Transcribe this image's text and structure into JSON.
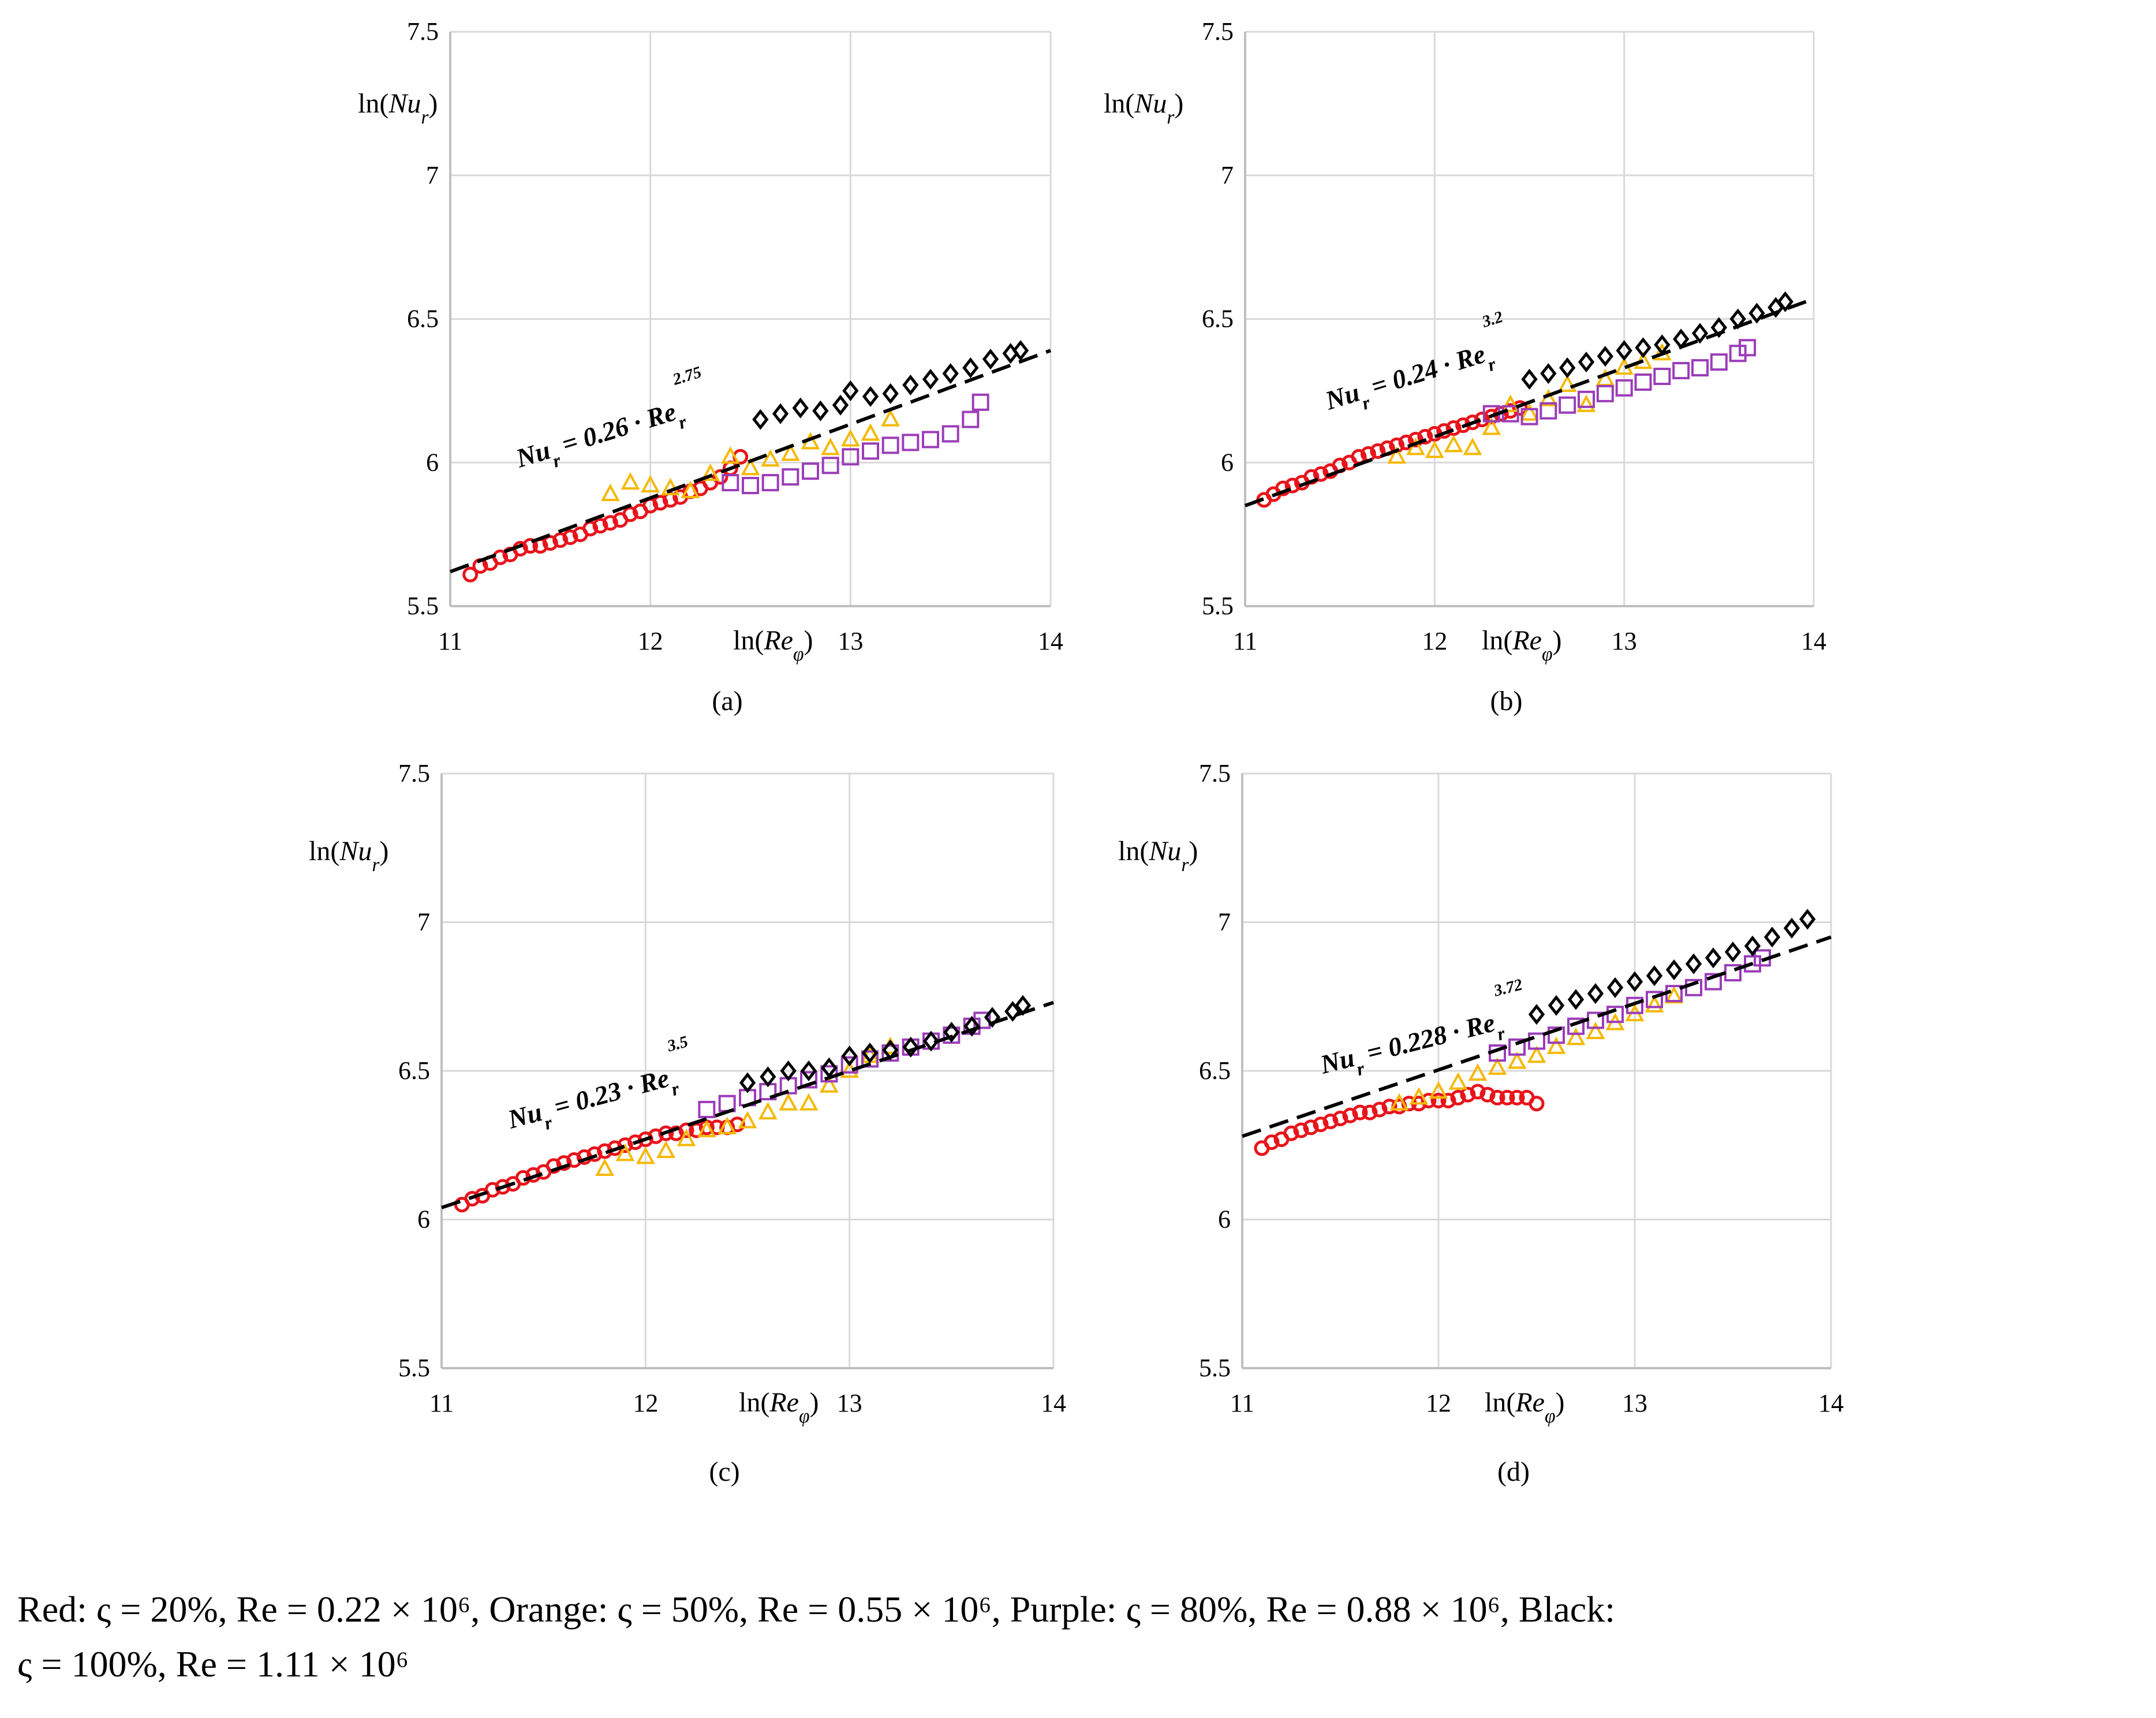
{
  "colors": {
    "red": "#e8141b",
    "orange": "#f5b800",
    "purple": "#9b3db8",
    "black": "#000000",
    "grid": "#d9d9d9",
    "axis": "#bfbfbf"
  },
  "chart_data": [
    {
      "type": "scatter",
      "panel_label": "(a)",
      "xlabel": "ln(Re_φ)",
      "ylabel": "ln(Nu_r)",
      "xlim": [
        11,
        14
      ],
      "ylim": [
        5.5,
        7.5
      ],
      "xticks": [
        "11",
        "12",
        "13",
        "14"
      ],
      "yticks": [
        "5.5",
        "6",
        "6.5",
        "7",
        "7.5"
      ],
      "grid": true,
      "fit_line": {
        "label": "Nu_r = 0.26 · Re_r",
        "exponent": "2.75",
        "x": [
          11,
          14
        ],
        "y": [
          5.62,
          6.39
        ]
      },
      "series": [
        {
          "color": "red",
          "marker": "circle",
          "x": [
            11.1,
            11.15,
            11.2,
            11.25,
            11.3,
            11.35,
            11.4,
            11.45,
            11.5,
            11.55,
            11.6,
            11.65,
            11.7,
            11.75,
            11.8,
            11.85,
            11.9,
            11.95,
            12.0,
            12.05,
            12.1,
            12.15,
            12.2,
            12.25,
            12.3,
            12.35,
            12.4,
            12.45
          ],
          "y": [
            5.61,
            5.64,
            5.65,
            5.67,
            5.68,
            5.7,
            5.71,
            5.71,
            5.72,
            5.73,
            5.74,
            5.75,
            5.77,
            5.78,
            5.79,
            5.8,
            5.82,
            5.83,
            5.85,
            5.86,
            5.87,
            5.88,
            5.9,
            5.91,
            5.93,
            5.95,
            5.98,
            6.02
          ]
        },
        {
          "color": "orange",
          "marker": "triangle",
          "x": [
            11.8,
            11.9,
            12.0,
            12.1,
            12.2,
            12.3,
            12.4,
            12.5,
            12.6,
            12.7,
            12.8,
            12.9,
            13.0,
            13.1,
            13.2
          ],
          "y": [
            5.89,
            5.93,
            5.92,
            5.91,
            5.9,
            5.96,
            6.02,
            5.98,
            6.01,
            6.03,
            6.07,
            6.05,
            6.08,
            6.1,
            6.15
          ]
        },
        {
          "color": "purple",
          "marker": "square",
          "x": [
            12.4,
            12.5,
            12.6,
            12.7,
            12.8,
            12.9,
            13.0,
            13.1,
            13.2,
            13.3,
            13.4,
            13.5,
            13.6,
            13.65
          ],
          "y": [
            5.93,
            5.92,
            5.93,
            5.95,
            5.97,
            5.99,
            6.02,
            6.04,
            6.06,
            6.07,
            6.08,
            6.1,
            6.15,
            6.21
          ]
        },
        {
          "color": "black",
          "marker": "diamond",
          "x": [
            12.55,
            12.65,
            12.75,
            12.85,
            12.95,
            13.0,
            13.1,
            13.2,
            13.3,
            13.4,
            13.5,
            13.6,
            13.7,
            13.8,
            13.85
          ],
          "y": [
            6.15,
            6.17,
            6.19,
            6.18,
            6.2,
            6.25,
            6.23,
            6.24,
            6.27,
            6.29,
            6.31,
            6.33,
            6.36,
            6.38,
            6.39
          ]
        }
      ]
    },
    {
      "type": "scatter",
      "panel_label": "(b)",
      "xlabel": "ln(Re_φ)",
      "ylabel": "ln(Nu_r)",
      "xlim": [
        11,
        14
      ],
      "ylim": [
        5.5,
        7.5
      ],
      "xticks": [
        "11",
        "12",
        "13",
        "14"
      ],
      "yticks": [
        "5.5",
        "6",
        "6.5",
        "7",
        "7.5"
      ],
      "grid": true,
      "fit_line": {
        "label": "Nu_r = 0.24 · Re_r",
        "exponent": "3.2",
        "x": [
          11,
          14
        ],
        "y": [
          5.85,
          6.57
        ]
      },
      "series": [
        {
          "color": "red",
          "marker": "circle",
          "x": [
            11.1,
            11.15,
            11.2,
            11.25,
            11.3,
            11.35,
            11.4,
            11.45,
            11.5,
            11.55,
            11.6,
            11.65,
            11.7,
            11.75,
            11.8,
            11.85,
            11.9,
            11.95,
            12.0,
            12.05,
            12.1,
            12.15,
            12.2,
            12.25,
            12.3,
            12.35,
            12.4,
            12.45
          ],
          "y": [
            5.87,
            5.89,
            5.91,
            5.92,
            5.93,
            5.95,
            5.96,
            5.97,
            5.99,
            6.0,
            6.02,
            6.03,
            6.04,
            6.05,
            6.06,
            6.07,
            6.08,
            6.09,
            6.1,
            6.11,
            6.12,
            6.13,
            6.14,
            6.15,
            6.16,
            6.17,
            6.18,
            6.19
          ]
        },
        {
          "color": "orange",
          "marker": "triangle",
          "x": [
            11.8,
            11.9,
            12.0,
            12.1,
            12.2,
            12.3,
            12.4,
            12.5,
            12.6,
            12.7,
            12.8,
            12.9,
            13.0,
            13.1,
            13.2
          ],
          "y": [
            6.02,
            6.05,
            6.04,
            6.06,
            6.05,
            6.12,
            6.2,
            6.17,
            6.22,
            6.27,
            6.2,
            6.29,
            6.33,
            6.35,
            6.38
          ]
        },
        {
          "color": "purple",
          "marker": "square",
          "x": [
            12.3,
            12.4,
            12.5,
            12.6,
            12.7,
            12.8,
            12.9,
            13.0,
            13.1,
            13.2,
            13.3,
            13.4,
            13.5,
            13.6,
            13.65
          ],
          "y": [
            6.17,
            6.17,
            6.16,
            6.18,
            6.2,
            6.22,
            6.24,
            6.26,
            6.28,
            6.3,
            6.32,
            6.33,
            6.35,
            6.38,
            6.4
          ]
        },
        {
          "color": "black",
          "marker": "diamond",
          "x": [
            12.5,
            12.6,
            12.7,
            12.8,
            12.9,
            13.0,
            13.1,
            13.2,
            13.3,
            13.4,
            13.5,
            13.6,
            13.7,
            13.8,
            13.85
          ],
          "y": [
            6.29,
            6.31,
            6.33,
            6.35,
            6.37,
            6.39,
            6.4,
            6.41,
            6.43,
            6.45,
            6.47,
            6.5,
            6.52,
            6.54,
            6.56
          ]
        }
      ]
    },
    {
      "type": "scatter",
      "panel_label": "(c)",
      "xlabel": "ln(Re_φ)",
      "ylabel": "ln(Nu_r)",
      "xlim": [
        11,
        14
      ],
      "ylim": [
        5.5,
        7.5
      ],
      "xticks": [
        "11",
        "12",
        "13",
        "14"
      ],
      "yticks": [
        "5.5",
        "6",
        "6.5",
        "7",
        "7.5"
      ],
      "grid": true,
      "fit_line": {
        "label": "Nu_r = 0.23 · Re_r",
        "exponent": "3.5",
        "x": [
          11,
          14
        ],
        "y": [
          6.04,
          6.73
        ]
      },
      "series": [
        {
          "color": "red",
          "marker": "circle",
          "x": [
            11.1,
            11.15,
            11.2,
            11.25,
            11.3,
            11.35,
            11.4,
            11.45,
            11.5,
            11.55,
            11.6,
            11.65,
            11.7,
            11.75,
            11.8,
            11.85,
            11.9,
            11.95,
            12.0,
            12.05,
            12.1,
            12.15,
            12.2,
            12.25,
            12.3,
            12.35,
            12.4,
            12.45
          ],
          "y": [
            6.05,
            6.07,
            6.08,
            6.1,
            6.11,
            6.12,
            6.14,
            6.15,
            6.16,
            6.18,
            6.19,
            6.2,
            6.21,
            6.22,
            6.23,
            6.24,
            6.25,
            6.26,
            6.27,
            6.28,
            6.29,
            6.29,
            6.3,
            6.3,
            6.31,
            6.31,
            6.31,
            6.32
          ]
        },
        {
          "color": "orange",
          "marker": "triangle",
          "x": [
            11.8,
            11.9,
            12.0,
            12.1,
            12.2,
            12.3,
            12.4,
            12.5,
            12.6,
            12.7,
            12.8,
            12.9,
            13.0,
            13.1,
            13.2
          ],
          "y": [
            6.17,
            6.22,
            6.21,
            6.23,
            6.27,
            6.3,
            6.31,
            6.33,
            6.36,
            6.39,
            6.39,
            6.45,
            6.5,
            6.55,
            6.58
          ]
        },
        {
          "color": "purple",
          "marker": "square",
          "x": [
            12.3,
            12.4,
            12.5,
            12.6,
            12.7,
            12.8,
            12.9,
            13.0,
            13.1,
            13.2,
            13.3,
            13.4,
            13.5,
            13.6,
            13.65
          ],
          "y": [
            6.37,
            6.39,
            6.41,
            6.43,
            6.45,
            6.47,
            6.49,
            6.52,
            6.54,
            6.56,
            6.58,
            6.6,
            6.62,
            6.65,
            6.67
          ]
        },
        {
          "color": "black",
          "marker": "diamond",
          "x": [
            12.5,
            12.6,
            12.7,
            12.8,
            12.9,
            13.0,
            13.1,
            13.2,
            13.3,
            13.4,
            13.5,
            13.6,
            13.7,
            13.8,
            13.85
          ],
          "y": [
            6.46,
            6.48,
            6.5,
            6.5,
            6.51,
            6.55,
            6.56,
            6.57,
            6.58,
            6.6,
            6.63,
            6.65,
            6.68,
            6.7,
            6.72
          ]
        }
      ]
    },
    {
      "type": "scatter",
      "panel_label": "(d)",
      "xlabel": "ln(Re_φ)",
      "ylabel": "ln(Nu_r)",
      "xlim": [
        11,
        14
      ],
      "ylim": [
        5.5,
        7.5
      ],
      "xticks": [
        "11",
        "12",
        "13",
        "14"
      ],
      "yticks": [
        "5.5",
        "6",
        "6.5",
        "7",
        "7.5"
      ],
      "grid": true,
      "fit_line": {
        "label": "Nu_r = 0.228 · Re_r",
        "exponent": "3.72",
        "x": [
          11,
          14
        ],
        "y": [
          6.28,
          6.95
        ]
      },
      "series": [
        {
          "color": "red",
          "marker": "circle",
          "x": [
            11.1,
            11.15,
            11.2,
            11.25,
            11.3,
            11.35,
            11.4,
            11.45,
            11.5,
            11.55,
            11.6,
            11.65,
            11.7,
            11.75,
            11.8,
            11.85,
            11.9,
            11.95,
            12.0,
            12.05,
            12.1,
            12.15,
            12.2,
            12.25,
            12.3,
            12.35,
            12.4,
            12.45,
            12.5
          ],
          "y": [
            6.24,
            6.26,
            6.27,
            6.29,
            6.3,
            6.31,
            6.32,
            6.33,
            6.34,
            6.35,
            6.36,
            6.36,
            6.37,
            6.38,
            6.38,
            6.39,
            6.39,
            6.4,
            6.4,
            6.4,
            6.41,
            6.42,
            6.43,
            6.42,
            6.41,
            6.41,
            6.41,
            6.41,
            6.39
          ]
        },
        {
          "color": "orange",
          "marker": "triangle",
          "x": [
            11.8,
            11.9,
            12.0,
            12.1,
            12.2,
            12.3,
            12.4,
            12.5,
            12.6,
            12.7,
            12.8,
            12.9,
            13.0,
            13.1,
            13.2
          ],
          "y": [
            6.39,
            6.41,
            6.43,
            6.46,
            6.49,
            6.51,
            6.53,
            6.55,
            6.58,
            6.61,
            6.63,
            6.66,
            6.69,
            6.72,
            6.75
          ]
        },
        {
          "color": "purple",
          "marker": "square",
          "x": [
            12.3,
            12.4,
            12.5,
            12.6,
            12.7,
            12.8,
            12.9,
            13.0,
            13.1,
            13.2,
            13.3,
            13.4,
            13.5,
            13.6,
            13.65
          ],
          "y": [
            6.56,
            6.58,
            6.6,
            6.62,
            6.65,
            6.67,
            6.69,
            6.72,
            6.74,
            6.76,
            6.78,
            6.8,
            6.83,
            6.86,
            6.88
          ]
        },
        {
          "color": "black",
          "marker": "diamond",
          "x": [
            12.5,
            12.6,
            12.7,
            12.8,
            12.9,
            13.0,
            13.1,
            13.2,
            13.3,
            13.4,
            13.5,
            13.6,
            13.7,
            13.8,
            13.88
          ],
          "y": [
            6.69,
            6.72,
            6.74,
            6.76,
            6.78,
            6.8,
            6.82,
            6.84,
            6.86,
            6.88,
            6.9,
            6.92,
            6.95,
            6.98,
            7.01
          ]
        }
      ]
    }
  ],
  "caption": {
    "line1": "Red:  ς = 20%,  Re = 0.22 × 10⁶, Orange:  ς = 50%,  Re = 0.55 × 10⁶, Purple:  ς = 80%, Re = 0.88 × 10⁶, Black:",
    "line2": "ς = 100%, Re = 1.11 × 10⁶"
  }
}
